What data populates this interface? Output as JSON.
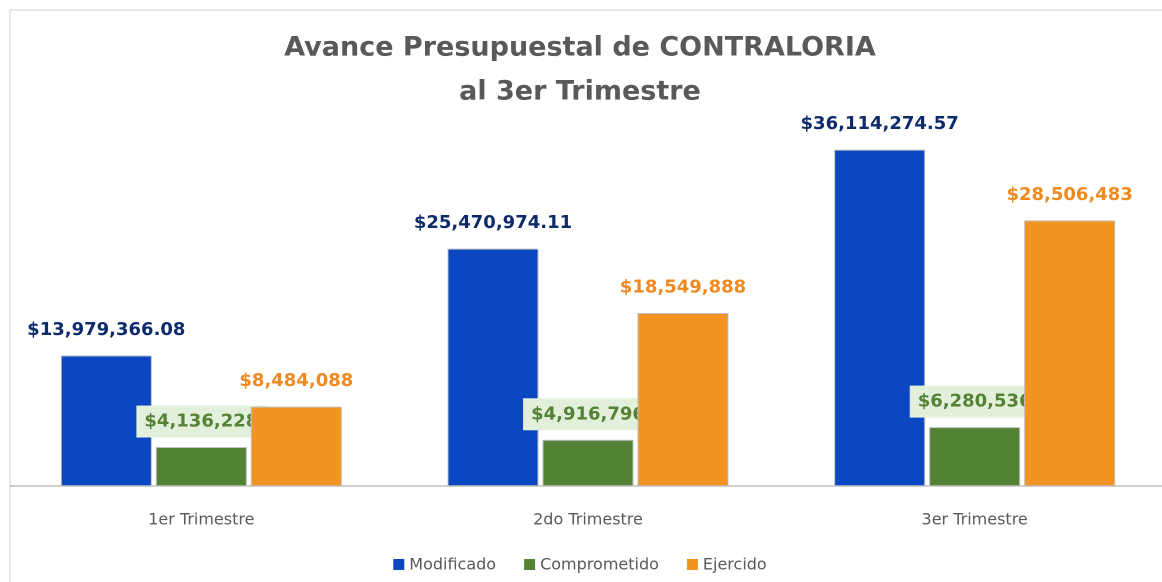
{
  "chart_data": {
    "type": "bar",
    "title": [
      "Avance Presupuestal de CONTRALORIA",
      "al 3er Trimestre"
    ],
    "categories": [
      "1er Trimestre",
      "2do Trimestre",
      "3er Trimestre"
    ],
    "series": [
      {
        "name": "Modificado",
        "color": "#0a47c0",
        "label_color": "#0d2a6b",
        "values": [
          13979366.08,
          25470974.11,
          36114274.57
        ],
        "value_labels": [
          "$13,979,366.08",
          "$25,470,974.11",
          "$36,114,274.57"
        ]
      },
      {
        "name": "Comprometido",
        "color": "#548235",
        "label_color": "#548235",
        "label_box": "#e2efda",
        "values": [
          4136228,
          4916796,
          6280536
        ],
        "value_labels": [
          "$4,136,228",
          "$4,916,796",
          "$6,280,536"
        ]
      },
      {
        "name": "Ejercido",
        "color": "#f39322",
        "label_color": "#f08a1f",
        "values": [
          8484088,
          18549888,
          28506483
        ],
        "value_labels": [
          "$8,484,088",
          "$18,549,888",
          "$28,506,483"
        ]
      }
    ],
    "ylim": [
      0,
      40000000
    ],
    "legend": "bottom"
  }
}
